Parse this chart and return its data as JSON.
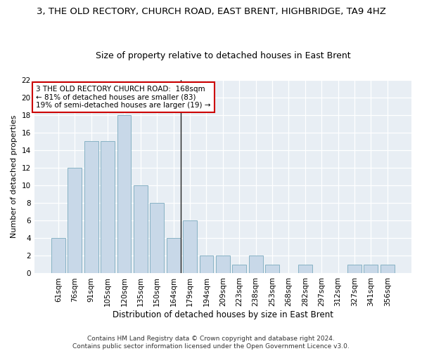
{
  "title": "3, THE OLD RECTORY, CHURCH ROAD, EAST BRENT, HIGHBRIDGE, TA9 4HZ",
  "subtitle": "Size of property relative to detached houses in East Brent",
  "xlabel": "Distribution of detached houses by size in East Brent",
  "ylabel": "Number of detached properties",
  "bar_labels": [
    "61sqm",
    "76sqm",
    "91sqm",
    "105sqm",
    "120sqm",
    "135sqm",
    "150sqm",
    "164sqm",
    "179sqm",
    "194sqm",
    "209sqm",
    "223sqm",
    "238sqm",
    "253sqm",
    "268sqm",
    "282sqm",
    "297sqm",
    "312sqm",
    "327sqm",
    "341sqm",
    "356sqm"
  ],
  "bar_values": [
    4,
    12,
    15,
    15,
    18,
    10,
    8,
    4,
    6,
    2,
    2,
    1,
    2,
    1,
    0,
    1,
    0,
    0,
    1,
    1,
    1
  ],
  "bar_color": "#c8d8e8",
  "bar_edge_color": "#7aaabe",
  "highlight_bar_index": 7,
  "highlight_line_color": "#222222",
  "ylim": [
    0,
    22
  ],
  "yticks": [
    0,
    2,
    4,
    6,
    8,
    10,
    12,
    14,
    16,
    18,
    20,
    22
  ],
  "annotation_title": "3 THE OLD RECTORY CHURCH ROAD:  168sqm",
  "annotation_line1": "← 81% of detached houses are smaller (83)",
  "annotation_line2": "19% of semi-detached houses are larger (19) →",
  "annotation_box_color": "#ffffff",
  "annotation_box_edge": "#cc0000",
  "footer_line1": "Contains HM Land Registry data © Crown copyright and database right 2024.",
  "footer_line2": "Contains public sector information licensed under the Open Government Licence v3.0.",
  "bg_color": "#e8eef4",
  "grid_color": "#ffffff",
  "fig_color": "#ffffff",
  "title_fontsize": 9.5,
  "subtitle_fontsize": 9,
  "xlabel_fontsize": 8.5,
  "ylabel_fontsize": 8,
  "tick_fontsize": 7.5,
  "annotation_fontsize": 7.5,
  "footer_fontsize": 6.5
}
